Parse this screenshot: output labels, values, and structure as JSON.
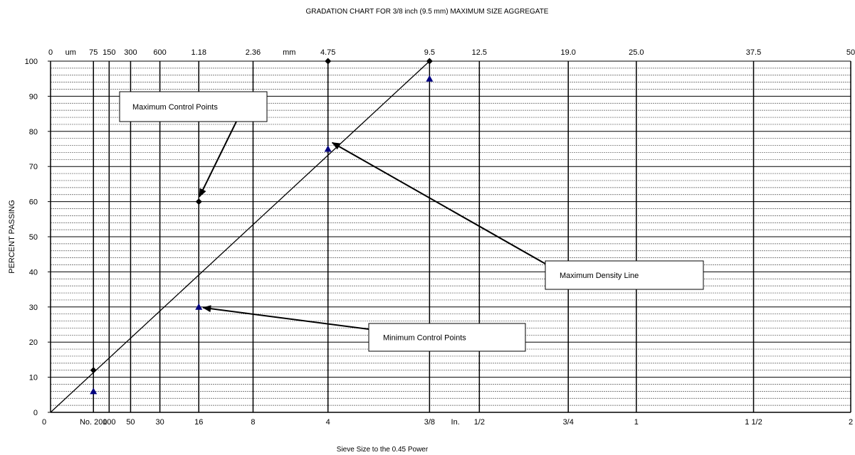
{
  "chart_data": {
    "type": "line",
    "title": "GRADATION CHART FOR  3/8 inch (9.5 mm)  MAXIMUM  SIZE  AGGREGATE",
    "xlabel": "Sieve Size to the 0.45 Power",
    "ylabel": "PERCENT PASSING",
    "x_scale": "sieve size (mm) raised to the 0.45 power",
    "x_unit": "mm",
    "ylim": [
      0,
      100
    ],
    "y_ticks": [
      0,
      10,
      20,
      30,
      40,
      50,
      60,
      70,
      80,
      90,
      100
    ],
    "grid": true,
    "minor_grid_y_step": 2,
    "sieves": [
      0.075,
      0.15,
      0.3,
      0.6,
      1.18,
      2.36,
      4.75,
      9.5,
      12.5,
      19.0,
      25.0,
      37.5,
      50.0
    ],
    "top_tick_labels": [
      {
        "mm": 0,
        "label": "0"
      },
      {
        "mm": 0.075,
        "label": "75"
      },
      {
        "mm": 0.15,
        "label": "150"
      },
      {
        "mm": 0.3,
        "label": "300"
      },
      {
        "mm": 0.6,
        "label": "600"
      },
      {
        "mm": 1.18,
        "label": "1.18"
      },
      {
        "mm": 2.36,
        "label": "2.36"
      },
      {
        "mm": 4.75,
        "label": "4.75"
      },
      {
        "mm": 9.5,
        "label": "9.5"
      },
      {
        "mm": 12.5,
        "label": "12.5"
      },
      {
        "mm": 19.0,
        "label": "19.0"
      },
      {
        "mm": 25.0,
        "label": "25.0"
      },
      {
        "mm": 37.5,
        "label": "37.5"
      },
      {
        "mm": 50.0,
        "label": "50"
      }
    ],
    "top_unit_labels": [
      {
        "mm": 0.014,
        "label": "um"
      },
      {
        "mm": 3.4,
        "label": "mm"
      }
    ],
    "bottom_tick_labels": [
      {
        "mm": 0,
        "label": "0"
      },
      {
        "mm": 0.075,
        "label": "No. 200"
      },
      {
        "mm": 0.15,
        "label": "100"
      },
      {
        "mm": 0.3,
        "label": "50"
      },
      {
        "mm": 0.6,
        "label": "30"
      },
      {
        "mm": 1.18,
        "label": "16"
      },
      {
        "mm": 2.36,
        "label": "8"
      },
      {
        "mm": 4.75,
        "label": "4"
      },
      {
        "mm": 9.5,
        "label": "3/8"
      },
      {
        "mm": 12.5,
        "label": "1/2"
      },
      {
        "mm": 19.0,
        "label": "3/4"
      },
      {
        "mm": 25.0,
        "label": "1"
      },
      {
        "mm": 37.5,
        "label": "1 1/2"
      },
      {
        "mm": 50.0,
        "label": "2"
      }
    ],
    "bottom_unit_labels": [
      {
        "mm": 11.0,
        "label": "In."
      }
    ],
    "series": [
      {
        "name": "Maximum Density Line",
        "style": "line",
        "color": "#000000",
        "points": [
          {
            "mm": 0,
            "y": 0
          },
          {
            "mm": 9.5,
            "y": 100
          }
        ]
      },
      {
        "name": "Maximum Control Points",
        "style": "diamond",
        "color": "#000000",
        "points": [
          {
            "mm": 0.075,
            "y": 12
          },
          {
            "mm": 1.18,
            "y": 60
          },
          {
            "mm": 4.75,
            "y": 100
          },
          {
            "mm": 9.5,
            "y": 100
          }
        ]
      },
      {
        "name": "Minimum Control Points",
        "style": "triangle",
        "color": "#000080",
        "points": [
          {
            "mm": 0.075,
            "y": 6
          },
          {
            "mm": 1.18,
            "y": 30
          },
          {
            "mm": 4.75,
            "y": 75
          },
          {
            "mm": 9.5,
            "y": 95
          }
        ]
      }
    ],
    "annotations": [
      {
        "text": "Maximum Control Points",
        "target": {
          "mm": 1.18,
          "y": 60
        }
      },
      {
        "text": "Maximum Density Line",
        "target": {
          "mm": 4.75,
          "y": 77
        }
      },
      {
        "text": "Minimum Control Points",
        "target": {
          "mm": 1.18,
          "y": 30
        }
      }
    ]
  }
}
